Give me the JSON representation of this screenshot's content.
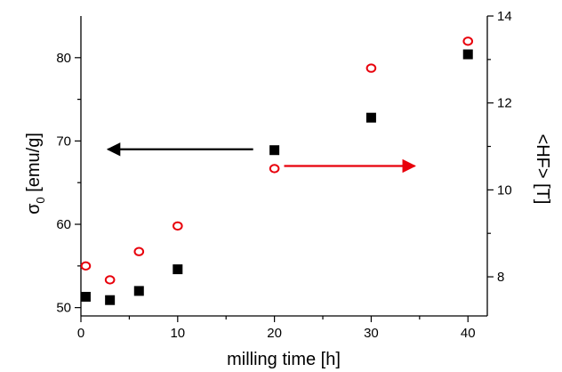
{
  "chart_data": {
    "type": "scatter",
    "x": [
      0.5,
      3,
      6,
      10,
      20,
      30,
      40
    ],
    "xlabel": "milling time [h]",
    "xlim": [
      0,
      42
    ],
    "xticks": [
      "0",
      "10",
      "20",
      "30",
      "40"
    ],
    "left_axis": {
      "label_symbol": "σ",
      "label_subscript": "0",
      "label_unit": " [emu/g]",
      "ylim": [
        49,
        85
      ],
      "yticks": [
        "50",
        "60",
        "70",
        "80"
      ]
    },
    "right_axis": {
      "label": "<HF> [T]",
      "ylim": [
        7.1,
        14
      ],
      "yticks": [
        "8",
        "10",
        "12",
        "14"
      ]
    },
    "series": [
      {
        "axis": "left",
        "marker": "filled-square",
        "color": "#000000",
        "values": [
          51.3,
          50.9,
          52.0,
          54.6,
          68.9,
          72.8,
          80.4
        ]
      },
      {
        "axis": "right",
        "marker": "open-circle",
        "color": "#e8000b",
        "values": [
          8.25,
          7.93,
          8.58,
          9.17,
          10.49,
          12.8,
          13.42
        ]
      }
    ],
    "annotations": [
      {
        "type": "arrow",
        "direction": "left",
        "color": "#000000",
        "x_from": 17.8,
        "x_to": 2.8,
        "y": 69
      },
      {
        "type": "arrow",
        "direction": "right",
        "color": "#e8000b",
        "x_from": 21,
        "x_to": 34.5,
        "y": 67
      }
    ],
    "grid": false,
    "legend": "none"
  }
}
